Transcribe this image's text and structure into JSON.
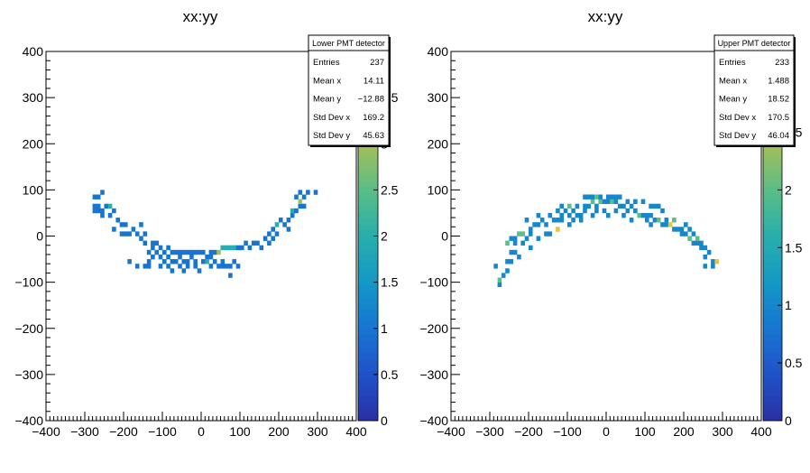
{
  "chart_data": [
    {
      "type": "heatmap",
      "title": "xx:yy",
      "xlim": [
        -400,
        400
      ],
      "ylim": [
        -400,
        400
      ],
      "bin_width": 10,
      "x_ticks": [
        -400,
        -300,
        -200,
        -100,
        0,
        100,
        200,
        300,
        400
      ],
      "x_tick_labels": [
        "−400",
        "−300",
        "−200",
        "−100",
        "0",
        "100",
        "200",
        "300",
        "400"
      ],
      "y_ticks": [
        -400,
        -300,
        -200,
        -100,
        0,
        100,
        200,
        300,
        400
      ],
      "y_tick_labels": [
        "−400",
        "−300",
        "−200",
        "−100",
        "0",
        "100",
        "200",
        "300",
        "400"
      ],
      "zlim": [
        0,
        4
      ],
      "z_ticks": [
        0,
        0.5,
        1,
        1.5,
        2,
        2.5,
        3,
        3.5
      ],
      "z_tick_labels": [
        "0",
        "0.5",
        "1",
        "1.5",
        "2",
        "2.5",
        "3",
        "3.5"
      ],
      "stats": {
        "title": "Lower PMT detector",
        "rows": [
          {
            "label": "Entries",
            "value": "237"
          },
          {
            "label": "Mean x",
            "value": "14.11"
          },
          {
            "label": "Mean y",
            "value": "−12.88"
          },
          {
            "label": "Std Dev x",
            "value": "169.2"
          },
          {
            "label": "Std Dev y",
            "value": "45.63"
          }
        ]
      },
      "bins": [
        [
          -280,
          80,
          1
        ],
        [
          -270,
          80,
          1
        ],
        [
          -260,
          90,
          1
        ],
        [
          -280,
          60,
          1
        ],
        [
          -270,
          60,
          1
        ],
        [
          -280,
          50,
          1
        ],
        [
          -260,
          50,
          1
        ],
        [
          -250,
          60,
          1
        ],
        [
          -240,
          60,
          2
        ],
        [
          -230,
          50,
          1
        ],
        [
          -240,
          40,
          1
        ],
        [
          -260,
          40,
          1
        ],
        [
          -270,
          50,
          1
        ],
        [
          -220,
          30,
          1
        ],
        [
          -210,
          20,
          1
        ],
        [
          -200,
          20,
          1
        ],
        [
          -230,
          10,
          1
        ],
        [
          -210,
          0,
          1
        ],
        [
          -200,
          0,
          1
        ],
        [
          -190,
          0,
          1
        ],
        [
          -180,
          10,
          1
        ],
        [
          -170,
          0,
          1
        ],
        [
          -160,
          -10,
          1
        ],
        [
          -150,
          0,
          1
        ],
        [
          -160,
          20,
          1
        ],
        [
          -150,
          -20,
          1
        ],
        [
          -130,
          -20,
          1
        ],
        [
          -120,
          -20,
          1
        ],
        [
          -130,
          -30,
          1
        ],
        [
          -110,
          -30,
          1
        ],
        [
          -140,
          -40,
          1
        ],
        [
          -120,
          -40,
          1
        ],
        [
          -100,
          -40,
          1
        ],
        [
          -90,
          -30,
          1
        ],
        [
          -80,
          -40,
          1
        ],
        [
          -70,
          -40,
          1
        ],
        [
          -60,
          -40,
          1
        ],
        [
          -50,
          -40,
          1
        ],
        [
          -40,
          -40,
          1
        ],
        [
          -30,
          -40,
          1
        ],
        [
          -20,
          -40,
          1
        ],
        [
          -10,
          -40,
          1
        ],
        [
          0,
          -40,
          1
        ],
        [
          10,
          -50,
          1
        ],
        [
          20,
          -40,
          1
        ],
        [
          30,
          -40,
          1
        ],
        [
          40,
          -40,
          3
        ],
        [
          50,
          -30,
          2
        ],
        [
          60,
          -30,
          2
        ],
        [
          70,
          -30,
          2
        ],
        [
          80,
          -30,
          2
        ],
        [
          90,
          -30,
          1
        ],
        [
          100,
          -30,
          1
        ],
        [
          110,
          -20,
          1
        ],
        [
          120,
          -30,
          1
        ],
        [
          130,
          -20,
          1
        ],
        [
          140,
          -20,
          1
        ],
        [
          150,
          -30,
          1
        ],
        [
          170,
          -20,
          1
        ],
        [
          160,
          -10,
          1
        ],
        [
          180,
          -10,
          1
        ],
        [
          170,
          0,
          1
        ],
        [
          190,
          0,
          1
        ],
        [
          180,
          10,
          1
        ],
        [
          190,
          20,
          2
        ],
        [
          210,
          20,
          1
        ],
        [
          220,
          10,
          1
        ],
        [
          200,
          30,
          1
        ],
        [
          220,
          30,
          1
        ],
        [
          230,
          40,
          1
        ],
        [
          230,
          50,
          2
        ],
        [
          240,
          50,
          1
        ],
        [
          250,
          60,
          1
        ],
        [
          260,
          60,
          1
        ],
        [
          250,
          70,
          3
        ],
        [
          240,
          80,
          1
        ],
        [
          260,
          80,
          1
        ],
        [
          250,
          90,
          1
        ],
        [
          270,
          90,
          1
        ],
        [
          290,
          90,
          1
        ],
        [
          -140,
          -60,
          1
        ],
        [
          -130,
          -50,
          1
        ],
        [
          -110,
          -50,
          1
        ],
        [
          -100,
          -60,
          1
        ],
        [
          -90,
          -50,
          1
        ],
        [
          -80,
          -60,
          1
        ],
        [
          -70,
          -60,
          1
        ],
        [
          -60,
          -50,
          1
        ],
        [
          -50,
          -60,
          1
        ],
        [
          -40,
          -60,
          1
        ],
        [
          -30,
          -50,
          1
        ],
        [
          -20,
          -60,
          1
        ],
        [
          0,
          -60,
          1
        ],
        [
          10,
          -60,
          2
        ],
        [
          20,
          -50,
          1
        ],
        [
          30,
          -60,
          1
        ],
        [
          40,
          -70,
          1
        ],
        [
          50,
          -60,
          1
        ],
        [
          60,
          -70,
          1
        ],
        [
          70,
          -70,
          1
        ],
        [
          80,
          -60,
          1
        ],
        [
          90,
          -70,
          1
        ],
        [
          -170,
          -70,
          1
        ],
        [
          -150,
          -70,
          1
        ],
        [
          -140,
          -70,
          1
        ],
        [
          -90,
          -70,
          1
        ],
        [
          -80,
          -80,
          1
        ],
        [
          -60,
          -70,
          1
        ],
        [
          -40,
          -70,
          1
        ],
        [
          -20,
          -70,
          1
        ],
        [
          -10,
          -80,
          1
        ],
        [
          20,
          -70,
          1
        ],
        [
          50,
          -70,
          1
        ],
        [
          70,
          -90,
          1
        ],
        [
          -110,
          -70,
          1
        ],
        [
          -50,
          -80,
          1
        ],
        [
          -190,
          -60,
          1
        ]
      ]
    },
    {
      "type": "heatmap",
      "title": "xx:yy",
      "xlim": [
        -400,
        400
      ],
      "ylim": [
        -400,
        400
      ],
      "bin_width": 10,
      "x_ticks": [
        -400,
        -300,
        -200,
        -100,
        0,
        100,
        200,
        300,
        400
      ],
      "x_tick_labels": [
        "−400",
        "−300",
        "−200",
        "−100",
        "0",
        "100",
        "200",
        "300",
        "400"
      ],
      "y_ticks": [
        -400,
        -300,
        -200,
        -100,
        0,
        100,
        200,
        300,
        400
      ],
      "y_tick_labels": [
        "−400",
        "−300",
        "−200",
        "−100",
        "0",
        "100",
        "200",
        "300",
        "400"
      ],
      "zlim": [
        0,
        3.2
      ],
      "z_ticks": [
        0,
        0.5,
        1,
        1.5,
        2,
        2.5
      ],
      "z_tick_labels": [
        "0",
        "0.5",
        "1",
        "1.5",
        "2",
        "2.5"
      ],
      "stats": {
        "title": "Upper PMT detector",
        "rows": [
          {
            "label": "Entries",
            "value": "233"
          },
          {
            "label": "Mean x",
            "value": "1.488"
          },
          {
            "label": "Mean y",
            "value": "18.52"
          },
          {
            "label": "Std Dev x",
            "value": "170.5"
          },
          {
            "label": "Std Dev y",
            "value": "46.04"
          }
        ]
      },
      "bins": [
        [
          -280,
          -110,
          1
        ],
        [
          -280,
          -100,
          2
        ],
        [
          -270,
          -90,
          1
        ],
        [
          -260,
          -80,
          1
        ],
        [
          -290,
          -70,
          1
        ],
        [
          -260,
          -60,
          1
        ],
        [
          -250,
          -60,
          1
        ],
        [
          -240,
          -40,
          1
        ],
        [
          -250,
          -40,
          1
        ],
        [
          -230,
          -50,
          1
        ],
        [
          -260,
          -20,
          2
        ],
        [
          -250,
          -10,
          1
        ],
        [
          -240,
          -10,
          1
        ],
        [
          -230,
          0,
          2
        ],
        [
          -220,
          0,
          2
        ],
        [
          -240,
          -20,
          1
        ],
        [
          -220,
          -20,
          1
        ],
        [
          -210,
          -10,
          1
        ],
        [
          -200,
          10,
          1
        ],
        [
          -190,
          20,
          1
        ],
        [
          -180,
          20,
          1
        ],
        [
          -170,
          30,
          1
        ],
        [
          -200,
          0,
          1
        ],
        [
          -180,
          -10,
          1
        ],
        [
          -160,
          0,
          1
        ],
        [
          -150,
          0,
          1
        ],
        [
          -130,
          10,
          3
        ],
        [
          -140,
          30,
          1
        ],
        [
          -130,
          30,
          1
        ],
        [
          -120,
          40,
          1
        ],
        [
          -110,
          50,
          1
        ],
        [
          -100,
          40,
          1
        ],
        [
          -90,
          30,
          1
        ],
        [
          -80,
          40,
          1
        ],
        [
          -70,
          40,
          1
        ],
        [
          -60,
          60,
          1
        ],
        [
          -50,
          60,
          1
        ],
        [
          -40,
          70,
          2
        ],
        [
          -30,
          60,
          1
        ],
        [
          -20,
          70,
          2
        ],
        [
          -10,
          70,
          1
        ],
        [
          0,
          70,
          1
        ],
        [
          10,
          70,
          2
        ],
        [
          20,
          70,
          1
        ],
        [
          30,
          60,
          1
        ],
        [
          40,
          60,
          1
        ],
        [
          50,
          50,
          1
        ],
        [
          60,
          60,
          1
        ],
        [
          70,
          50,
          1
        ],
        [
          80,
          40,
          2
        ],
        [
          90,
          40,
          1
        ],
        [
          100,
          40,
          1
        ],
        [
          110,
          40,
          1
        ],
        [
          120,
          30,
          1
        ],
        [
          130,
          30,
          2
        ],
        [
          140,
          20,
          1
        ],
        [
          150,
          20,
          1
        ],
        [
          160,
          20,
          3
        ],
        [
          170,
          10,
          1
        ],
        [
          180,
          10,
          1
        ],
        [
          190,
          0,
          1
        ],
        [
          200,
          0,
          1
        ],
        [
          210,
          -10,
          2
        ],
        [
          220,
          -20,
          1
        ],
        [
          230,
          -20,
          1
        ],
        [
          240,
          -20,
          1
        ],
        [
          250,
          -30,
          1
        ],
        [
          260,
          -40,
          1
        ],
        [
          270,
          -60,
          1
        ],
        [
          280,
          -60,
          3
        ],
        [
          250,
          -70,
          1
        ],
        [
          270,
          -70,
          1
        ],
        [
          250,
          -50,
          1
        ],
        [
          -130,
          50,
          1
        ],
        [
          -120,
          60,
          1
        ],
        [
          -100,
          60,
          2
        ],
        [
          -90,
          50,
          1
        ],
        [
          -80,
          60,
          1
        ],
        [
          -60,
          80,
          1
        ],
        [
          -50,
          80,
          1
        ],
        [
          -40,
          80,
          1
        ],
        [
          -30,
          80,
          2
        ],
        [
          -20,
          80,
          1
        ],
        [
          0,
          80,
          1
        ],
        [
          10,
          80,
          1
        ],
        [
          20,
          80,
          1
        ],
        [
          30,
          80,
          1
        ],
        [
          50,
          70,
          1
        ],
        [
          70,
          70,
          1
        ],
        [
          90,
          70,
          1
        ],
        [
          110,
          60,
          1
        ],
        [
          120,
          60,
          1
        ],
        [
          140,
          50,
          1
        ],
        [
          130,
          60,
          1
        ],
        [
          -120,
          30,
          1
        ],
        [
          -100,
          20,
          1
        ],
        [
          -60,
          50,
          1
        ],
        [
          -30,
          50,
          1
        ],
        [
          -10,
          50,
          1
        ],
        [
          20,
          50,
          1
        ],
        [
          60,
          30,
          1
        ],
        [
          100,
          30,
          1
        ],
        [
          150,
          30,
          1
        ],
        [
          170,
          30,
          2
        ],
        [
          200,
          20,
          1
        ],
        [
          210,
          10,
          1
        ],
        [
          190,
          10,
          1
        ],
        [
          220,
          0,
          1
        ],
        [
          230,
          -10,
          2
        ],
        [
          240,
          -30,
          1
        ],
        [
          -180,
          40,
          1
        ],
        [
          -210,
          30,
          1
        ],
        [
          -160,
          20,
          1
        ],
        [
          -150,
          40,
          1
        ],
        [
          -70,
          30,
          1
        ],
        [
          -40,
          40,
          1
        ],
        [
          0,
          40,
          1
        ],
        [
          40,
          40,
          1
        ],
        [
          110,
          20,
          1
        ],
        [
          -200,
          -30,
          1
        ]
      ]
    }
  ]
}
